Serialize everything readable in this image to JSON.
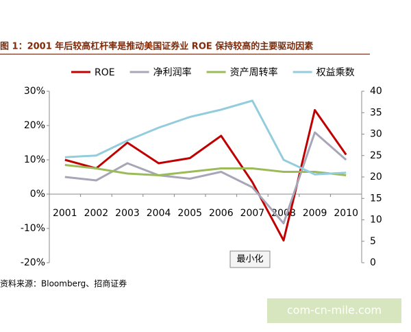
{
  "chart_data": {
    "type": "line",
    "title": "图 1：2001 年后较高杠杆率是推动美国证券业 ROE 保持较高的主要驱动因素",
    "categories": [
      "2001",
      "2002",
      "2003",
      "2004",
      "2005",
      "2006",
      "2007",
      "2008",
      "2009",
      "2010"
    ],
    "series": [
      {
        "name": "ROE",
        "color": "#c00000",
        "values": [
          10,
          7.5,
          15,
          9,
          10.5,
          17,
          3.5,
          -13.5,
          24.5,
          11.5
        ]
      },
      {
        "name": "净利润率",
        "color": "#a6a6b8",
        "values": [
          5,
          4,
          9,
          5.5,
          4.5,
          6.5,
          2,
          -8.5,
          18,
          10
        ]
      },
      {
        "name": "资产周转率",
        "color": "#9bbb59",
        "values": [
          8.5,
          7.5,
          6,
          5.5,
          6.5,
          7.5,
          7.5,
          6.5,
          6.5,
          5.5
        ]
      },
      {
        "name": "权益乘数",
        "color": "#93cddd",
        "axis": "y2",
        "values": [
          24.6,
          25,
          28.5,
          31.5,
          34,
          35.7,
          37.8,
          24,
          20.6,
          21
        ]
      }
    ],
    "ylim": [
      -20,
      30
    ],
    "yticks": [
      {
        "value": -20,
        "label": "-20%"
      },
      {
        "value": -10,
        "label": "-10%"
      },
      {
        "value": 0,
        "label": "0%"
      },
      {
        "value": 10,
        "label": "10%"
      },
      {
        "value": 20,
        "label": "20%"
      },
      {
        "value": 30,
        "label": "30%"
      }
    ],
    "y2lim": [
      0,
      40
    ],
    "y2ticks": [
      0,
      5,
      10,
      15,
      20,
      25,
      30,
      35,
      40
    ],
    "grid": false,
    "legend": "top"
  },
  "button": "最小化",
  "source": "资料来源：Bloomberg、招商证券",
  "watermark": "com-cn-mile.com"
}
